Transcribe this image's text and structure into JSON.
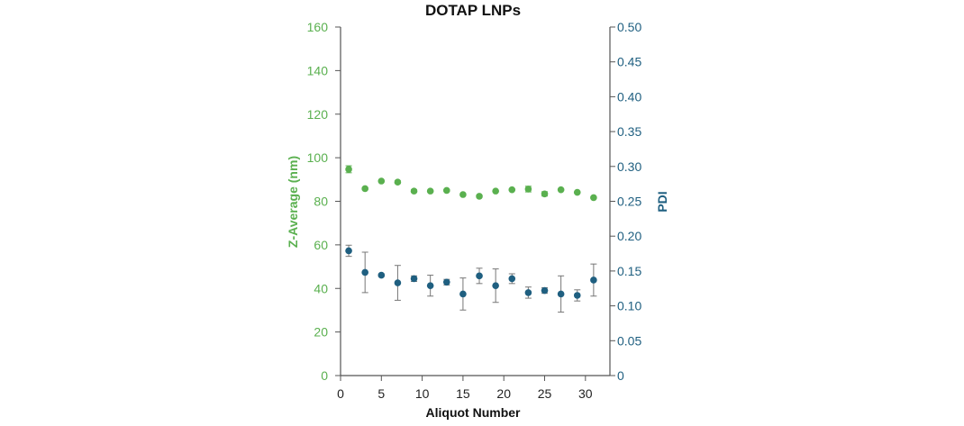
{
  "chart_data": {
    "type": "scatter",
    "title": "DOTAP LNPs",
    "xlabel": "Aliquot Number",
    "ylabel_left": "Z-Average (nm)",
    "ylabel_right": "PDI",
    "xlim": [
      0,
      33
    ],
    "ylim_left": [
      0,
      160
    ],
    "ylim_right": [
      0,
      0.5
    ],
    "xticks": [
      "0",
      "5",
      "10",
      "15",
      "20",
      "25",
      "30"
    ],
    "yticks_left": [
      "0",
      "20",
      "40",
      "60",
      "80",
      "100",
      "120",
      "140",
      "160"
    ],
    "yticks_right": [
      "0",
      "0.05",
      "0.10",
      "0.15",
      "0.20",
      "0.25",
      "0.30",
      "0.35",
      "0.40",
      "0.45",
      "0.50"
    ],
    "grid": false,
    "colors": {
      "zavg": "#5ab04f",
      "pdi": "#1f5f80",
      "errorbar": "#777777",
      "axis": "#555555"
    },
    "series": [
      {
        "axis": "left",
        "x": [
          1,
          3,
          5,
          7,
          9,
          11,
          13,
          15,
          17,
          19,
          21,
          23,
          25,
          27,
          29,
          31
        ],
        "values": [
          94.7,
          85.8,
          89.3,
          88.8,
          84.7,
          84.7,
          85.0,
          83.1,
          82.3,
          84.7,
          85.3,
          85.6,
          83.4,
          85.3,
          84.1,
          81.7
        ],
        "errors": [
          1.6,
          0.5,
          0.3,
          0.6,
          0.6,
          0.4,
          0.4,
          0.4,
          0.5,
          0.3,
          0.4,
          1.3,
          1.0,
          0.4,
          0.3,
          0.4
        ]
      },
      {
        "axis": "right",
        "x": [
          1,
          3,
          5,
          7,
          9,
          11,
          13,
          15,
          17,
          19,
          21,
          23,
          25,
          27,
          29,
          31
        ],
        "values": [
          0.179,
          0.148,
          0.144,
          0.133,
          0.139,
          0.129,
          0.134,
          0.117,
          0.143,
          0.129,
          0.139,
          0.119,
          0.122,
          0.117,
          0.115,
          0.137
        ],
        "errors": [
          0.008,
          0.029,
          0.002,
          0.025,
          0.004,
          0.015,
          0.004,
          0.023,
          0.011,
          0.024,
          0.007,
          0.008,
          0.004,
          0.026,
          0.008,
          0.023
        ]
      }
    ]
  }
}
